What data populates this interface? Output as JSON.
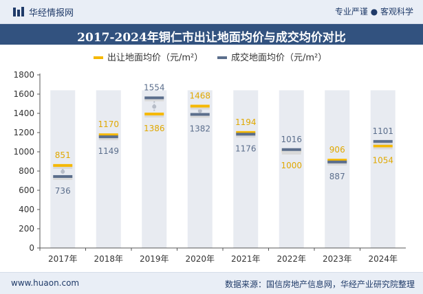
{
  "header": {
    "brand": "华经情报网",
    "slogan": "专业严谨 ● 客观科学"
  },
  "chart_data": {
    "type": "bar",
    "title": "2017-2024年铜仁市出让地面均价与成交均价对比",
    "categories": [
      "2017年",
      "2018年",
      "2019年",
      "2020年",
      "2021年",
      "2022年",
      "2023年",
      "2024年"
    ],
    "series": [
      {
        "name": "出让地面均价（元/m²）",
        "values": [
          851,
          1170,
          1386,
          1468,
          1194,
          1000,
          906,
          1054
        ],
        "color": "#f5b800"
      },
      {
        "name": "成交地面均价（元/m²）",
        "values": [
          736,
          1149,
          1554,
          1382,
          1176,
          1016,
          887,
          1101
        ],
        "color": "#5b6e8c"
      }
    ],
    "ylim": [
      0,
      1800
    ],
    "yticks": [
      0,
      200,
      400,
      600,
      800,
      1000,
      1200,
      1400,
      1600,
      1800
    ],
    "xlabel": "",
    "ylabel": "",
    "legend": "top-center"
  },
  "footer": {
    "website": "www.huaon.com",
    "source": "数据来源：国信房地产信息网，华经产业研究院整理"
  }
}
